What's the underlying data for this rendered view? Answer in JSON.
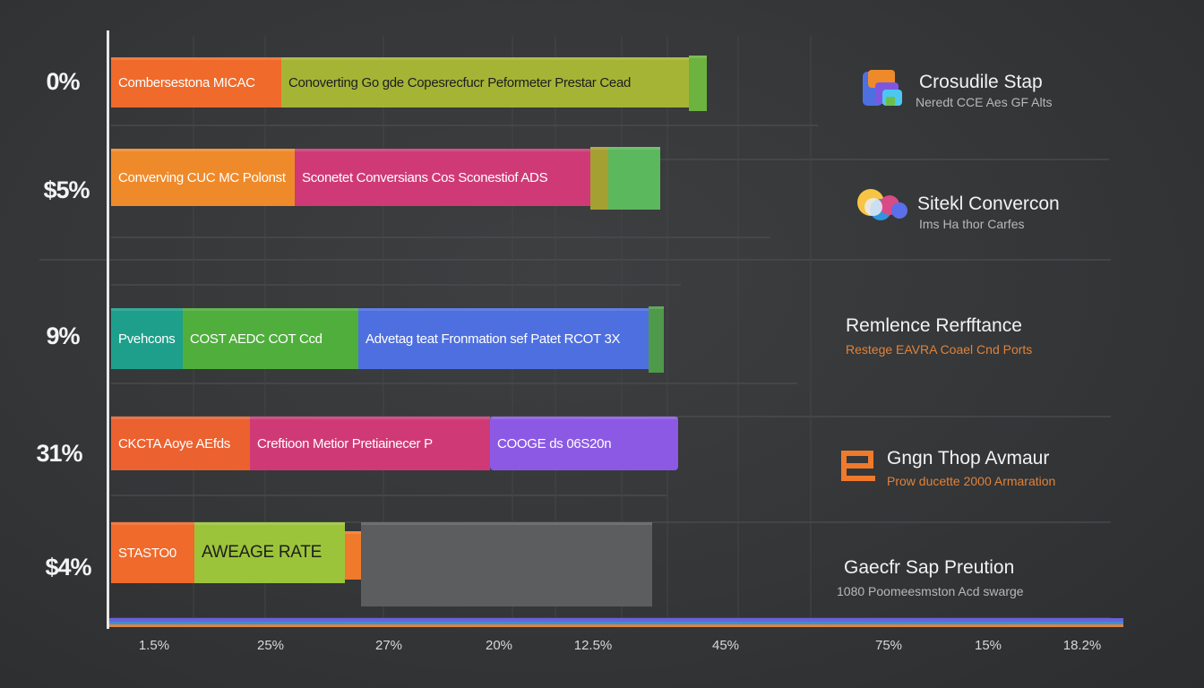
{
  "colors": {
    "orange": "#ef6a2b",
    "olive": "#a5b435",
    "green": "#6cb33f",
    "pink": "#cf3a76",
    "magenta": "#c4388a",
    "teal": "#1d9f8c",
    "blue": "#4e6fe0",
    "purple": "#8c59e4",
    "lime": "#8cbe3a",
    "gray": "#5b5d5e"
  },
  "chart_data": {
    "type": "bar",
    "orientation": "horizontal-stacked",
    "title": "",
    "xlabel": "",
    "ylabel": "",
    "xlim": [
      0,
      1000
    ],
    "grid": true,
    "categories": [
      "0%",
      "$5%",
      "9%",
      "31%",
      "$4%"
    ],
    "x_ticks": [
      "1.5%",
      "25%",
      "27%",
      "20%",
      "12.5%",
      "45%",
      "75%",
      "15%",
      "18.2%"
    ],
    "rows": [
      {
        "label": "0%",
        "segments": [
          {
            "text": "Combersestona MICAC",
            "value": 190,
            "color": "#ef6a2b"
          },
          {
            "text": "Conoverting Go gde Copesrecfucr Peformeter  Prestar Cead",
            "value": 455,
            "color": "#a5b435"
          },
          {
            "text": "",
            "value": 20,
            "color": "#6cb33f"
          }
        ]
      },
      {
        "label": "$5%",
        "segments": [
          {
            "text": "Converving CUC MC Polonst",
            "value": 205,
            "color": "#ef8a2b"
          },
          {
            "text": "Sconetet Conversians Cos Sconestiof ADS",
            "value": 330,
            "color": "#cf3a76"
          },
          {
            "text": "",
            "value": 20,
            "color": "#a5a032"
          },
          {
            "text": "",
            "value": 58,
            "color": "#5cb85c"
          }
        ]
      },
      {
        "label": "9%",
        "segments": [
          {
            "text": "Pvehcons",
            "value": 80,
            "color": "#1d9f8c"
          },
          {
            "text": "COST AEDC    COT Ccd",
            "value": 196,
            "color": "#4fae3c"
          },
          {
            "text": "Advetag teat Fronmation sef Patet RCOT 3X",
            "value": 324,
            "color": "#4e6fe0"
          },
          {
            "text": "",
            "value": 17,
            "color": "#4e9a4a"
          }
        ]
      },
      {
        "label": "31%",
        "segments": [
          {
            "text": "CKCTA Aoye AEfds",
            "value": 155,
            "color": "#ec6130"
          },
          {
            "text": "Creftioon Metior Pretiainecer P",
            "value": 268,
            "color": "#cf3a76"
          },
          {
            "text": "COOGE ds    06S20n",
            "value": 210,
            "color": "#8c59e4"
          }
        ]
      },
      {
        "label": "$4%",
        "segments": [
          {
            "text": "STASTO0",
            "value": 93,
            "color": "#ef6a2b"
          },
          {
            "text": "AWEAGE RATE",
            "value": 168,
            "color": "#9cc43a"
          },
          {
            "text": "",
            "value": 18,
            "color": "#ef7a2b"
          },
          {
            "text": "",
            "value": 325,
            "color": "#5b5d5e"
          }
        ]
      }
    ]
  },
  "legend": [
    {
      "icon": "stacked-squares-icon",
      "title": "Crosudile Stap",
      "subtitle": "Neredt CCE Aes GF Alts"
    },
    {
      "icon": "colored-circles-icon",
      "title": "Sitekl Convercon",
      "subtitle": "Ims Ha thor Carfes"
    },
    {
      "icon": "",
      "title": "Remlence  Rerfftance",
      "subtitle": "Restege EAVRA Coael Cnd Ports"
    },
    {
      "icon": "orange-e-icon",
      "title": "Gngn Thop Avmaur",
      "subtitle": "Prow ducette 2000 Armaration"
    },
    {
      "icon": "",
      "title": "Gaecfr Sap Preution",
      "subtitle": "1080 Poomeesmston Acd swarge"
    }
  ]
}
